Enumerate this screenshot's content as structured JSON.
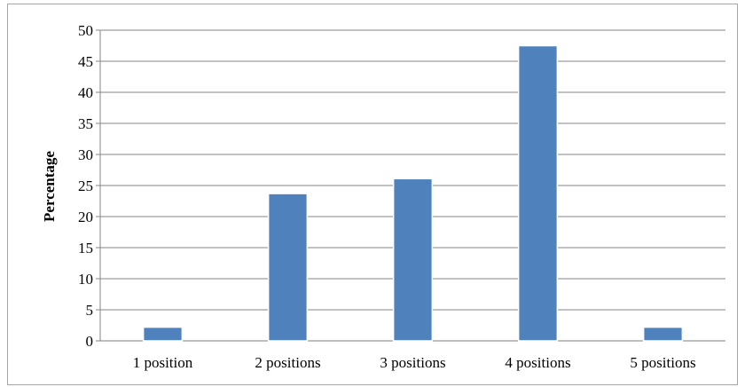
{
  "chart_data": {
    "type": "bar",
    "categories": [
      "1 position",
      "2 positions",
      "3 positions",
      "4 positions",
      "5 positions"
    ],
    "values": [
      2.2,
      23.7,
      26.1,
      47.5,
      2.2
    ],
    "title": "",
    "xlabel": "",
    "ylabel": "Percentage",
    "ylim": [
      0,
      50
    ],
    "yticks": [
      0,
      5,
      10,
      15,
      20,
      25,
      30,
      35,
      40,
      45,
      50
    ],
    "grid": true,
    "legend": "none",
    "bar_color": "#4f81bd",
    "bar_edge_color": "#ffffff"
  }
}
